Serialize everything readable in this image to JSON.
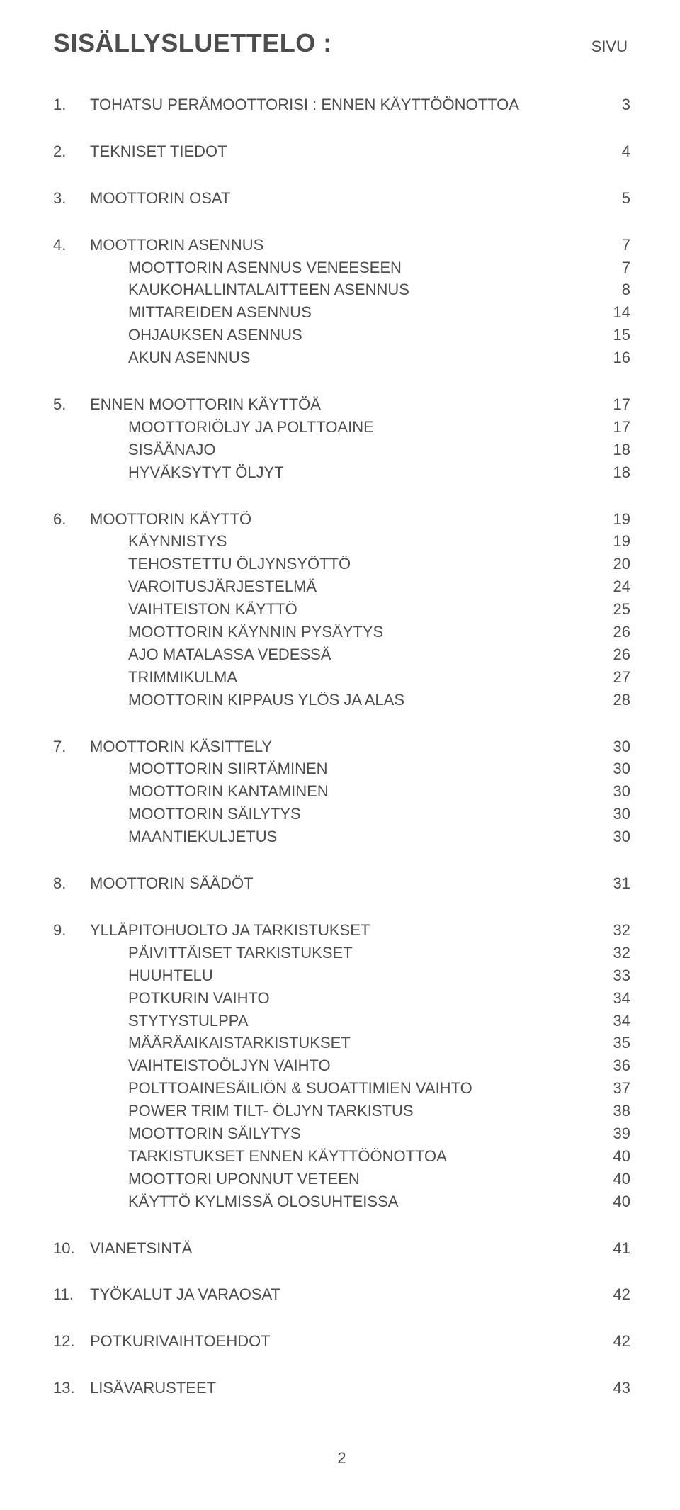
{
  "title": "SISÄLLYSLUETTELO :",
  "page_label": "SIVU",
  "page_number": "2",
  "sections": [
    {
      "num": "1.",
      "title": "TOHATSU PERÄMOOTTORISI : ENNEN KÄYTTÖÖNOTTOA",
      "page": "3",
      "subs": []
    },
    {
      "num": "2.",
      "title": "TEKNISET TIEDOT",
      "page": "4",
      "subs": []
    },
    {
      "num": "3.",
      "title": "MOOTTORIN OSAT",
      "page": "5",
      "subs": []
    },
    {
      "num": "4.",
      "title": "MOOTTORIN ASENNUS",
      "page": "7",
      "subs": [
        {
          "title": "MOOTTORIN ASENNUS VENEESEEN",
          "page": "7"
        },
        {
          "title": "KAUKOHALLINTALAITTEEN ASENNUS",
          "page": "8"
        },
        {
          "title": "MITTAREIDEN ASENNUS",
          "page": "14"
        },
        {
          "title": "OHJAUKSEN ASENNUS",
          "page": "15"
        },
        {
          "title": "AKUN ASENNUS",
          "page": "16"
        }
      ]
    },
    {
      "num": "5.",
      "title": "ENNEN MOOTTORIN KÄYTTÖÄ",
      "page": "17",
      "subs": [
        {
          "title": "MOOTTORIÖLJY JA POLTTOAINE",
          "page": "17"
        },
        {
          "title": "SISÄÄNAJO",
          "page": "18"
        },
        {
          "title": "HYVÄKSYTYT ÖLJYT",
          "page": "18"
        }
      ]
    },
    {
      "num": "6.",
      "title": "MOOTTORIN KÄYTTÖ",
      "page": "19",
      "subs": [
        {
          "title": "KÄYNNISTYS",
          "page": "19"
        },
        {
          "title": "TEHOSTETTU ÖLJYNSYÖTTÖ",
          "page": "20"
        },
        {
          "title": "VAROITUSJÄRJESTELMÄ",
          "page": "24"
        },
        {
          "title": "VAIHTEISTON KÄYTTÖ",
          "page": "25"
        },
        {
          "title": "MOOTTORIN KÄYNNIN PYSÄYTYS",
          "page": "26"
        },
        {
          "title": "AJO MATALASSA VEDESSÄ",
          "page": "26"
        },
        {
          "title": "TRIMMIKULMA",
          "page": "27"
        },
        {
          "title": "MOOTTORIN KIPPAUS YLÖS JA ALAS",
          "page": "28"
        }
      ]
    },
    {
      "num": "7.",
      "title": "MOOTTORIN KÄSITTELY",
      "page": "30",
      "subs": [
        {
          "title": "MOOTTORIN SIIRTÄMINEN",
          "page": "30"
        },
        {
          "title": "MOOTTORIN KANTAMINEN",
          "page": "30"
        },
        {
          "title": "MOOTTORIN SÄILYTYS",
          "page": "30"
        },
        {
          "title": "MAANTIEKULJETUS",
          "page": "30"
        }
      ]
    },
    {
      "num": "8.",
      "title": "MOOTTORIN SÄÄDÖT",
      "page": "31",
      "subs": []
    },
    {
      "num": "9.",
      "title": "YLLÄPITOHUOLTO JA TARKISTUKSET",
      "page": "32",
      "subs": [
        {
          "title": "PÄIVITTÄISET TARKISTUKSET",
          "page": "32"
        },
        {
          "title": "HUUHTELU",
          "page": "33"
        },
        {
          "title": "POTKURIN VAIHTO",
          "page": "34"
        },
        {
          "title": "STYTYSTULPPA",
          "page": "34"
        },
        {
          "title": "MÄÄRÄAIKAISTARKISTUKSET",
          "page": "35"
        },
        {
          "title": "VAIHTEISTOÖLJYN VAIHTO",
          "page": "36"
        },
        {
          "title": "POLTTOAINESÄILIÖN  & SUOATTIMIEN VAIHTO",
          "page": "37"
        },
        {
          "title": "POWER TRIM  TILT- ÖLJYN TARKISTUS",
          "page": "38"
        },
        {
          "title": "MOOTTORIN SÄILYTYS",
          "page": "39"
        },
        {
          "title": "TARKISTUKSET ENNEN KÄYTTÖÖNOTTOA",
          "page": "40"
        },
        {
          "title": "MOOTTORI UPONNUT VETEEN",
          "page": "40"
        },
        {
          "title": "KÄYTTÖ KYLMISSÄ OLOSUHTEISSA",
          "page": "40"
        }
      ]
    },
    {
      "num": "10.",
      "title": "VIANETSINTÄ",
      "page": "41",
      "subs": []
    },
    {
      "num": "11.",
      "title": "TYÖKALUT JA VARAOSAT",
      "page": "42",
      "subs": []
    },
    {
      "num": "12.",
      "title": "POTKURIVAIHTOEHDOT",
      "page": "42",
      "subs": []
    },
    {
      "num": "13.",
      "title": "LISÄVARUSTEET",
      "page": "43",
      "subs": []
    }
  ]
}
